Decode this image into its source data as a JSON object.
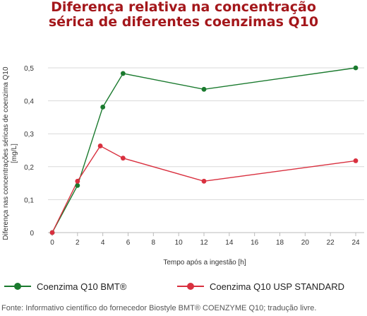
{
  "chart_data": {
    "type": "line",
    "title_lines": [
      "Diferença relativa na concentração",
      "sérica de diferentes coenzimas Q10"
    ],
    "xlabel": "Tempo após a ingestão [h]",
    "ylabel_lines": [
      "Diferença nas concentrações séricas de coenzima Q10",
      "[mg/L]"
    ],
    "x_ticks": [
      "0",
      "2",
      "4",
      "6",
      "8",
      "10",
      "12",
      "14",
      "16",
      "18",
      "20",
      "22",
      "24"
    ],
    "y_ticks": [
      "0",
      "0,1",
      "0,2",
      "0,3",
      "0,4",
      "0,5"
    ],
    "xlim": [
      0,
      24
    ],
    "ylim": [
      0,
      0.5
    ],
    "grid": "horizontal",
    "legend_position": "bottom",
    "series": [
      {
        "name": "Coenzima Q10 BMT®",
        "color": "#1a7a2e",
        "x": [
          0,
          2,
          4,
          5.6,
          12,
          24
        ],
        "y": [
          0,
          0.143,
          0.381,
          0.483,
          0.435,
          0.5
        ]
      },
      {
        "name": "Coenzima Q10 USP STANDARD",
        "color": "#d9303f",
        "x": [
          0,
          2,
          3.8,
          5.6,
          12,
          24
        ],
        "y": [
          0,
          0.156,
          0.263,
          0.226,
          0.156,
          0.218
        ]
      }
    ]
  },
  "footer": {
    "source": "Fonte: Informativo científico do fornecedor Biostyle BMT® COENZYME Q10; tradução livre."
  },
  "colors": {
    "title": "#a4171b",
    "grid": "#d9d9d9"
  }
}
